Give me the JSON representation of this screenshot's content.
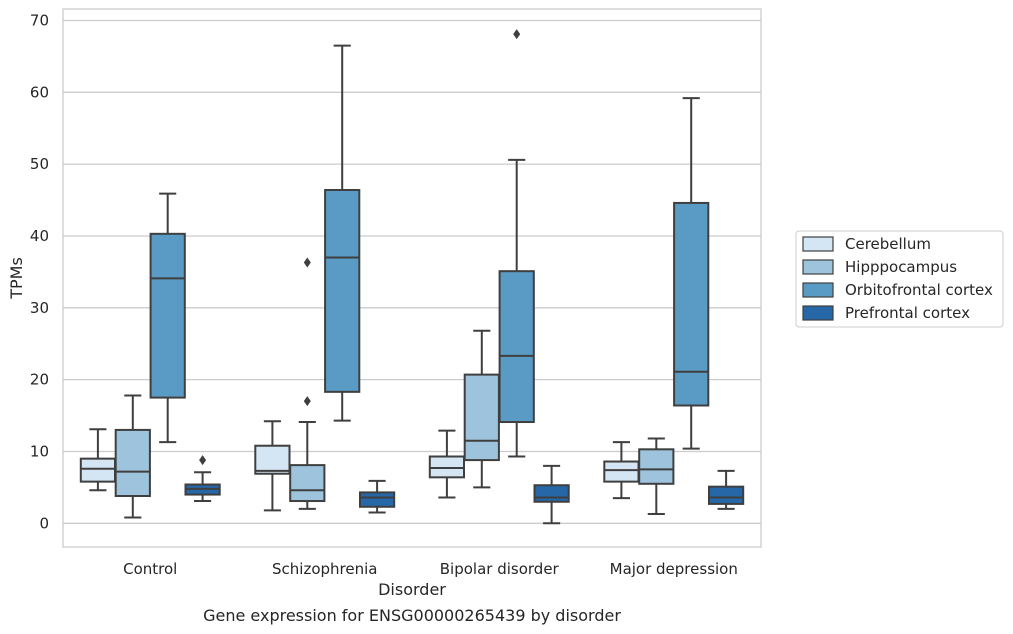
{
  "caption": "Gene expression for ENSG00000265439 by disorder",
  "chart_data": {
    "type": "box",
    "xlabel": "Disorder",
    "ylabel": "TPMs",
    "ylim": [
      -3.3,
      71.6
    ],
    "yticks": [
      0,
      10,
      20,
      30,
      40,
      50,
      60,
      70
    ],
    "grid": "horizontal",
    "legend_position": "right",
    "categories": [
      "Control",
      "Schizophrenia",
      "Bipolar disorder",
      "Major depression"
    ],
    "series": [
      {
        "name": "Cerebellum",
        "color": "#d4e5f3",
        "boxes": [
          {
            "whislo": 4.6,
            "q1": 5.8,
            "med": 7.6,
            "q3": 9.0,
            "whishi": 13.1,
            "fliers": []
          },
          {
            "whislo": 1.8,
            "q1": 6.9,
            "med": 7.3,
            "q3": 10.8,
            "whishi": 14.2,
            "fliers": []
          },
          {
            "whislo": 3.6,
            "q1": 6.4,
            "med": 7.7,
            "q3": 9.3,
            "whishi": 12.9,
            "fliers": []
          },
          {
            "whislo": 3.5,
            "q1": 5.8,
            "med": 7.4,
            "q3": 8.6,
            "whishi": 11.3,
            "fliers": []
          }
        ]
      },
      {
        "name": "Hipppocampus",
        "color": "#9dc3dd",
        "boxes": [
          {
            "whislo": 0.8,
            "q1": 3.8,
            "med": 7.2,
            "q3": 13.0,
            "whishi": 17.8,
            "fliers": []
          },
          {
            "whislo": 2.0,
            "q1": 3.1,
            "med": 4.6,
            "q3": 8.1,
            "whishi": 14.1,
            "fliers": [
              17.0,
              36.3
            ]
          },
          {
            "whislo": 5.0,
            "q1": 8.8,
            "med": 11.5,
            "q3": 20.7,
            "whishi": 26.8,
            "fliers": []
          },
          {
            "whislo": 1.3,
            "q1": 5.5,
            "med": 7.5,
            "q3": 10.3,
            "whishi": 11.8,
            "fliers": []
          }
        ]
      },
      {
        "name": "Orbitofrontal cortex",
        "color": "#5a9bc5",
        "boxes": [
          {
            "whislo": 11.3,
            "q1": 17.5,
            "med": 34.1,
            "q3": 40.3,
            "whishi": 45.9,
            "fliers": []
          },
          {
            "whislo": 14.3,
            "q1": 18.3,
            "med": 37.0,
            "q3": 46.4,
            "whishi": 66.5,
            "fliers": []
          },
          {
            "whislo": 9.3,
            "q1": 14.1,
            "med": 23.3,
            "q3": 35.1,
            "whishi": 50.6,
            "fliers": [
              68.1
            ]
          },
          {
            "whislo": 10.4,
            "q1": 16.4,
            "med": 21.1,
            "q3": 44.6,
            "whishi": 59.2,
            "fliers": []
          }
        ]
      },
      {
        "name": "Prefrontal cortex",
        "color": "#2667a7",
        "boxes": [
          {
            "whislo": 3.1,
            "q1": 4.0,
            "med": 4.8,
            "q3": 5.4,
            "whishi": 7.1,
            "fliers": [
              8.8
            ]
          },
          {
            "whislo": 1.5,
            "q1": 2.3,
            "med": 3.6,
            "q3": 4.3,
            "whishi": 5.9,
            "fliers": []
          },
          {
            "whislo": 0.0,
            "q1": 3.0,
            "med": 3.6,
            "q3": 5.3,
            "whishi": 8.0,
            "fliers": []
          },
          {
            "whislo": 2.0,
            "q1": 2.7,
            "med": 3.6,
            "q3": 5.1,
            "whishi": 7.3,
            "fliers": []
          }
        ]
      }
    ]
  }
}
